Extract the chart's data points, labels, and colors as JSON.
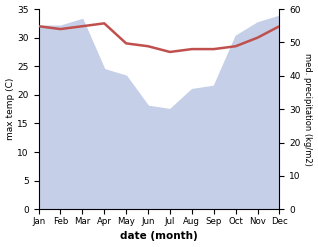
{
  "months": [
    "Jan",
    "Feb",
    "Mar",
    "Apr",
    "May",
    "Jun",
    "Jul",
    "Aug",
    "Sep",
    "Oct",
    "Nov",
    "Dec"
  ],
  "temperature": [
    32.0,
    31.5,
    32.0,
    32.5,
    29.0,
    28.5,
    27.5,
    28.0,
    28.0,
    28.5,
    30.0,
    32.0
  ],
  "precipitation": [
    55,
    55,
    57,
    42,
    40,
    31,
    30,
    36,
    37,
    52,
    56,
    58
  ],
  "temp_color": "#c0504d",
  "precip_fill_color": "#c5cfe8",
  "ylabel_left": "max temp (C)",
  "ylabel_right": "med. precipitation (kg/m2)",
  "xlabel": "date (month)",
  "ylim_left": [
    0,
    35
  ],
  "ylim_right": [
    0,
    60
  ],
  "bg_color": "#ffffff"
}
